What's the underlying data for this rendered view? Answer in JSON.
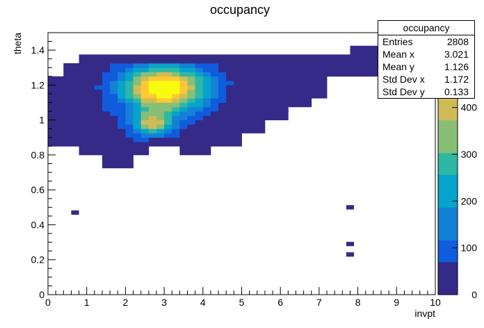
{
  "chart_data": {
    "type": "heatmap",
    "title": "occupancy",
    "xlabel": "invpt",
    "ylabel": "theta",
    "xlim": [
      0,
      10
    ],
    "ylim": [
      0,
      1.5
    ],
    "x_bins": 50,
    "y_bins": 60,
    "x_ticks": [
      "0",
      "1",
      "2",
      "3",
      "4",
      "5",
      "6",
      "7",
      "8",
      "9",
      "10"
    ],
    "y_ticks": [
      "0",
      "0.2",
      "0.4",
      "0.6",
      "0.8",
      "1",
      "1.2",
      "1.4"
    ],
    "z_range": [
      0,
      560
    ],
    "z_ticks": [
      "0",
      "100",
      "200",
      "300",
      "400"
    ],
    "palette": [
      "#352a87",
      "#0f5cdd",
      "#1481d6",
      "#06a4ca",
      "#2eb7a4",
      "#87bf77",
      "#d1bb59",
      "#fec832",
      "#f9fb0e"
    ],
    "bulk_region": {
      "description_free": true,
      "x_edges": [
        0.0,
        10.0
      ],
      "peak1": {
        "x": 3.0,
        "y": 1.18,
        "z": 560
      },
      "peak2": {
        "x": 2.7,
        "y": 0.98,
        "z": 420
      }
    },
    "isolated_cells": [
      {
        "x": 0.7,
        "y": 0.47,
        "z": 10
      },
      {
        "x": 7.8,
        "y": 0.5,
        "z": 10
      },
      {
        "x": 7.8,
        "y": 0.29,
        "z": 10
      },
      {
        "x": 7.8,
        "y": 0.23,
        "z": 10
      }
    ]
  },
  "stats": {
    "title": "occupancy",
    "rows": [
      {
        "label": "Entries",
        "value": "2808"
      },
      {
        "label": "Mean x",
        "value": "3.021"
      },
      {
        "label": "Mean y",
        "value": "1.126"
      },
      {
        "label": "Std Dev x",
        "value": "1.172"
      },
      {
        "label": "Std Dev y",
        "value": "0.133"
      }
    ]
  }
}
